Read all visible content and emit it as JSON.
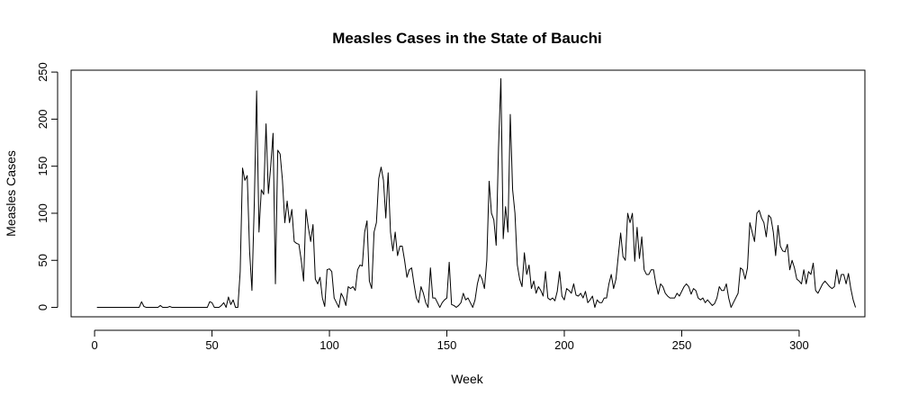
{
  "chart_data": {
    "type": "line",
    "title": "Measles Cases in the State of Bauchi",
    "xlabel": "Week",
    "ylabel": "Measles Cases",
    "xlim": [
      -10,
      328
    ],
    "ylim": [
      -10,
      252
    ],
    "xticks": [
      0,
      50,
      100,
      150,
      200,
      250,
      300
    ],
    "yticks": [
      0,
      50,
      100,
      150,
      200,
      250
    ],
    "grid": false,
    "color": "#000000",
    "series": [
      {
        "values": [
          0,
          0,
          0,
          0,
          0,
          0,
          0,
          0,
          0,
          0,
          0,
          0,
          0,
          0,
          0,
          0,
          0,
          0,
          0,
          6,
          1,
          0,
          0,
          0,
          0,
          0,
          0,
          2,
          0,
          0,
          0,
          1,
          0,
          0,
          0,
          0,
          0,
          0,
          0,
          0,
          0,
          0,
          0,
          0,
          0,
          0,
          0,
          0,
          6,
          5,
          0,
          0,
          0,
          2,
          5,
          0,
          11,
          3,
          8,
          0,
          0,
          38,
          148,
          135,
          140,
          60,
          18,
          110,
          230,
          80,
          125,
          120,
          195,
          121,
          150,
          185,
          25,
          167,
          163,
          135,
          90,
          113,
          90,
          104,
          70,
          68,
          67,
          50,
          28,
          104,
          85,
          70,
          88,
          30,
          25,
          32,
          10,
          1,
          40,
          41,
          38,
          10,
          5,
          0,
          15,
          10,
          2,
          22,
          20,
          22,
          18,
          40,
          45,
          44,
          80,
          92,
          28,
          20,
          80,
          90,
          137,
          149,
          135,
          95,
          143,
          80,
          60,
          80,
          55,
          65,
          65,
          50,
          32,
          40,
          42,
          25,
          10,
          5,
          22,
          15,
          5,
          0,
          42,
          10,
          10,
          5,
          0,
          5,
          8,
          10,
          48,
          3,
          2,
          0,
          2,
          5,
          15,
          8,
          10,
          5,
          0,
          8,
          25,
          35,
          30,
          20,
          50,
          134,
          100,
          93,
          66,
          170,
          243,
          73,
          107,
          80,
          205,
          125,
          100,
          45,
          30,
          22,
          58,
          35,
          45,
          20,
          28,
          15,
          22,
          18,
          12,
          38,
          10,
          8,
          10,
          7,
          17,
          38,
          12,
          8,
          20,
          18,
          15,
          25,
          13,
          12,
          15,
          10,
          17,
          5,
          8,
          12,
          0,
          8,
          5,
          5,
          10,
          10,
          25,
          35,
          20,
          30,
          55,
          79,
          54,
          50,
          100,
          90,
          100,
          49,
          85,
          52,
          75,
          40,
          35,
          35,
          40,
          40,
          25,
          14,
          25,
          22,
          15,
          12,
          10,
          10,
          10,
          15,
          12,
          17,
          22,
          25,
          22,
          14,
          20,
          18,
          10,
          8,
          10,
          5,
          8,
          5,
          2,
          4,
          10,
          22,
          18,
          18,
          25,
          10,
          0,
          5,
          10,
          15,
          42,
          40,
          30,
          42,
          90,
          80,
          70,
          100,
          103,
          95,
          90,
          75,
          98,
          95,
          80,
          55,
          87,
          65,
          60,
          59,
          67,
          40,
          50,
          42,
          30,
          28,
          25,
          40,
          25,
          38,
          35,
          47,
          18,
          15,
          20,
          25,
          28,
          25,
          22,
          20,
          22,
          40,
          25,
          35,
          35,
          25,
          36,
          20,
          8,
          0
        ]
      }
    ]
  }
}
